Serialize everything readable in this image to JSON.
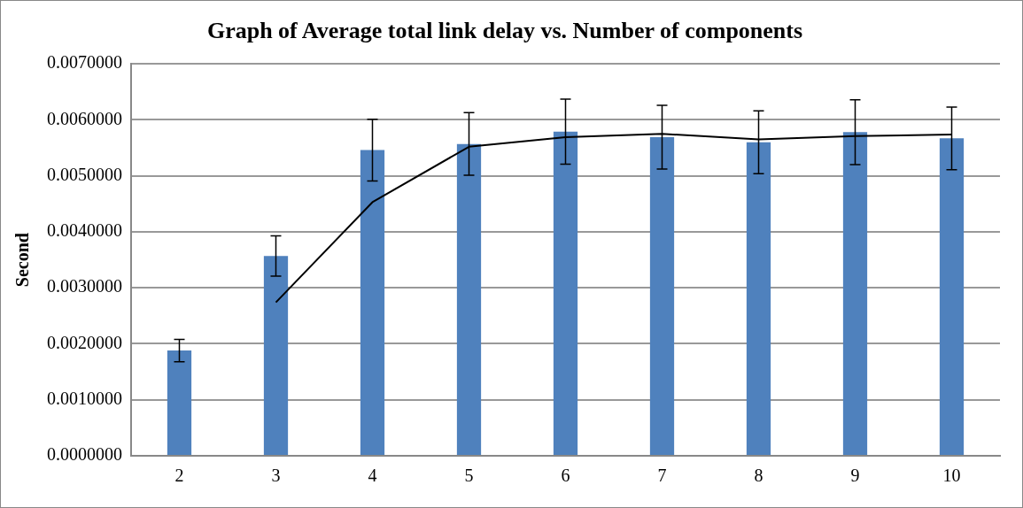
{
  "chart_data": {
    "type": "bar",
    "title": "Graph of Average total link delay vs. Number of components",
    "ylabel": "Second",
    "categories": [
      "2",
      "3",
      "4",
      "5",
      "6",
      "7",
      "8",
      "9",
      "10"
    ],
    "series": [
      {
        "color": "#4f81bd",
        "values": [
          0.00188,
          0.00357,
          0.00546,
          0.00557,
          0.00579,
          0.00569,
          0.0056,
          0.00578,
          0.00567
        ],
        "errors": [
          0.0002,
          0.00036,
          0.00055,
          0.00056,
          0.00058,
          0.00057,
          0.00056,
          0.00058,
          0.00056
        ]
      },
      {
        "type": "line",
        "color": "#000000",
        "values": [
          null,
          0.00274,
          0.00453,
          0.00552,
          0.00569,
          0.00575,
          0.00565,
          0.00571,
          0.00574
        ]
      }
    ],
    "ylim": [
      0,
      0.007
    ],
    "yticks": [
      {
        "value": 0,
        "label": "0.0000000"
      },
      {
        "value": 0.001,
        "label": "0.0010000"
      },
      {
        "value": 0.002,
        "label": "0.0020000"
      },
      {
        "value": 0.003,
        "label": "0.0030000"
      },
      {
        "value": 0.004,
        "label": "0.0040000"
      },
      {
        "value": 0.005,
        "label": "0.0050000"
      },
      {
        "value": 0.006,
        "label": "0.0060000"
      },
      {
        "value": 0.007,
        "label": "0.0070000"
      }
    ],
    "grid": "y",
    "legend": false,
    "marker": "none",
    "line_style": "solid"
  }
}
